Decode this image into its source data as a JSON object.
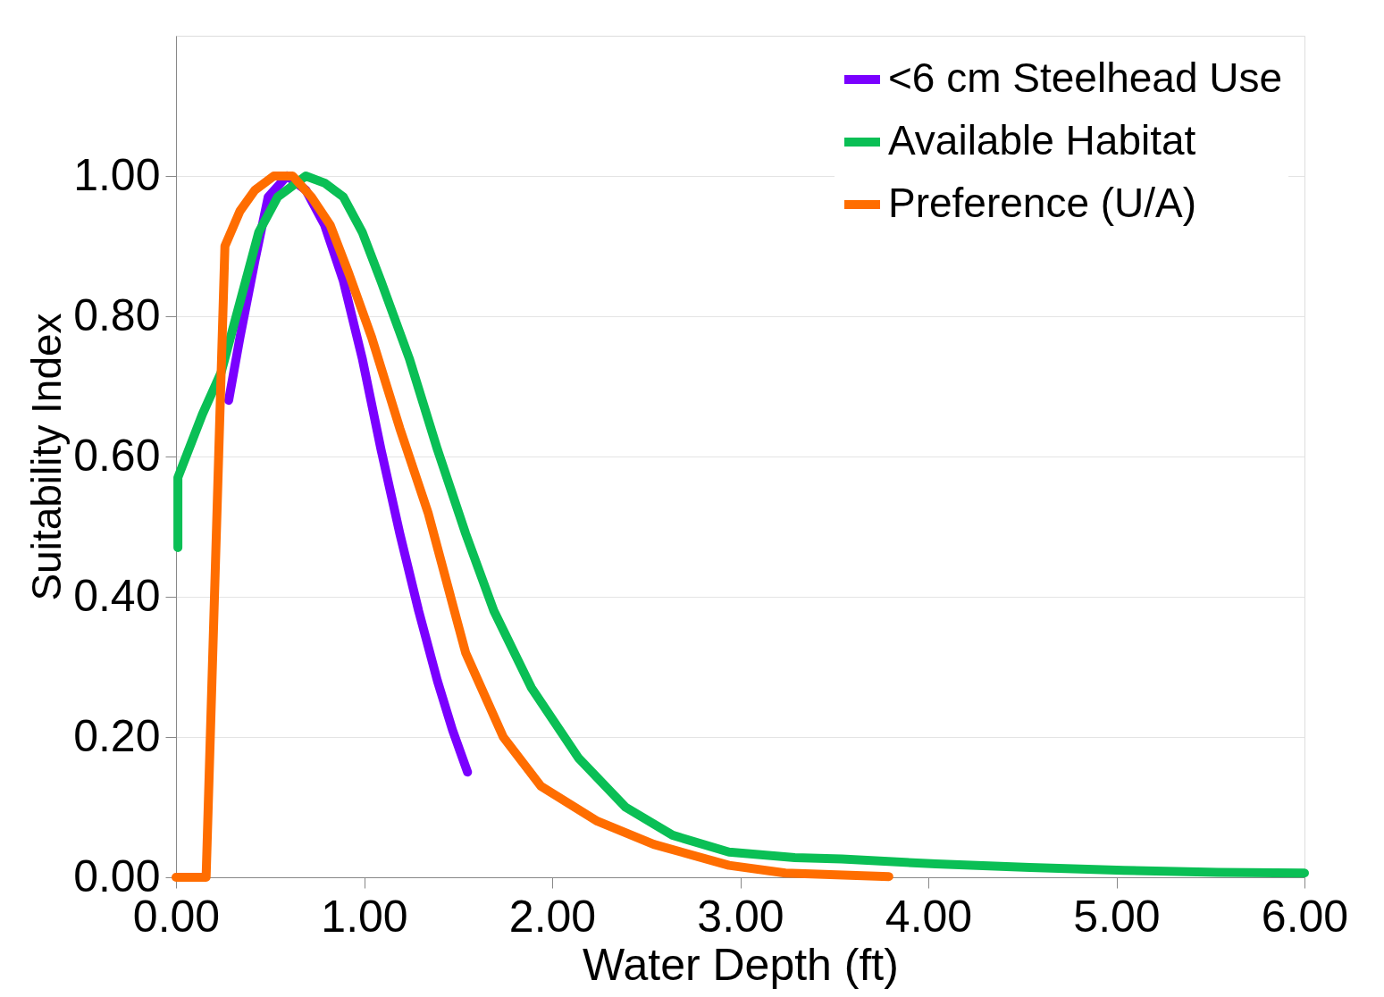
{
  "chart_data": {
    "type": "line",
    "xlabel": "Water Depth (ft)",
    "ylabel": "Suitability Index",
    "xlim": [
      0,
      6
    ],
    "ylim": [
      0,
      1.2
    ],
    "xticks": [
      {
        "value": 0,
        "label": "0.00"
      },
      {
        "value": 1,
        "label": "1.00"
      },
      {
        "value": 2,
        "label": "2.00"
      },
      {
        "value": 3,
        "label": "3.00"
      },
      {
        "value": 4,
        "label": "4.00"
      },
      {
        "value": 5,
        "label": "5.00"
      },
      {
        "value": 6,
        "label": "6.00"
      }
    ],
    "yticks": [
      {
        "value": 0,
        "label": "0.00"
      },
      {
        "value": 0.2,
        "label": "0.20"
      },
      {
        "value": 0.4,
        "label": "0.40"
      },
      {
        "value": 0.6,
        "label": "0.60"
      },
      {
        "value": 0.8,
        "label": "0.80"
      },
      {
        "value": 1.0,
        "label": "1.00"
      }
    ],
    "grid": "y",
    "legend": "top right",
    "marker": "none",
    "line_style": "solid",
    "series": [
      {
        "name": "<6 cm Steelhead Use",
        "color": "#7a00ff",
        "x": [
          0.28,
          0.34,
          0.42,
          0.49,
          0.59,
          0.69,
          0.79,
          0.89,
          0.99,
          1.09,
          1.19,
          1.29,
          1.39,
          1.47,
          1.55
        ],
        "values": [
          0.68,
          0.77,
          0.88,
          0.97,
          1.0,
          0.98,
          0.93,
          0.85,
          0.74,
          0.61,
          0.49,
          0.38,
          0.28,
          0.21,
          0.15
        ]
      },
      {
        "name": "Available Habitat",
        "color": "#0abf55",
        "x": [
          0.01,
          0.01,
          0.14,
          0.24,
          0.34,
          0.44,
          0.54,
          0.69,
          0.79,
          0.89,
          0.99,
          1.09,
          1.24,
          1.39,
          1.54,
          1.69,
          1.89,
          2.14,
          2.39,
          2.64,
          2.94,
          3.29,
          3.54,
          4.04,
          4.54,
          5.04,
          5.54,
          6.0
        ],
        "values": [
          0.47,
          0.57,
          0.66,
          0.72,
          0.82,
          0.92,
          0.97,
          1.0,
          0.99,
          0.97,
          0.92,
          0.85,
          0.74,
          0.61,
          0.49,
          0.38,
          0.27,
          0.17,
          0.1,
          0.06,
          0.036,
          0.028,
          0.026,
          0.019,
          0.014,
          0.01,
          0.007,
          0.006
        ]
      },
      {
        "name": "Preference (U/A)",
        "color": "#ff6d00",
        "x": [
          0.0,
          0.16,
          0.26,
          0.34,
          0.42,
          0.52,
          0.62,
          0.72,
          0.82,
          0.92,
          1.04,
          1.19,
          1.34,
          1.54,
          1.74,
          1.94,
          2.24,
          2.54,
          2.94,
          3.24,
          3.79
        ],
        "values": [
          0.0,
          0.0,
          0.9,
          0.95,
          0.98,
          1.0,
          1.0,
          0.97,
          0.93,
          0.86,
          0.77,
          0.64,
          0.52,
          0.32,
          0.2,
          0.13,
          0.08,
          0.047,
          0.017,
          0.006,
          0.001
        ]
      }
    ]
  }
}
